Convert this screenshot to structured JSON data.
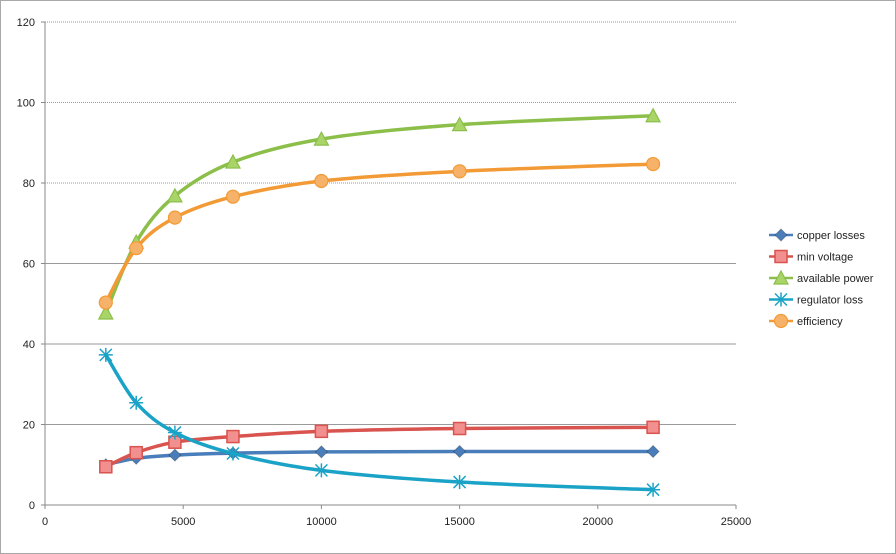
{
  "chart_data": {
    "type": "line",
    "title": "",
    "xlabel": "",
    "ylabel": "",
    "x": [
      2200,
      3300,
      4700,
      6800,
      10000,
      15000,
      22000
    ],
    "xlim": [
      0,
      25000
    ],
    "ylim": [
      0,
      120
    ],
    "x_ticks": [
      0,
      5000,
      10000,
      15000,
      20000,
      25000
    ],
    "y_ticks": [
      0,
      20,
      40,
      60,
      80,
      100,
      120
    ],
    "grid": "horizontal",
    "legend_position": "right",
    "series": [
      {
        "name": "copper losses",
        "color": "#4a7ebb",
        "marker": "diamond",
        "values": [
          10.0,
          11.6,
          12.4,
          12.9,
          13.2,
          13.3,
          13.3
        ]
      },
      {
        "name": "min voltage",
        "color": "#d9534f",
        "marker": "square",
        "values": [
          9.5,
          13.0,
          15.6,
          17.0,
          18.3,
          19.0,
          19.3
        ]
      },
      {
        "name": "available power",
        "color": "#8cbf4a",
        "marker": "triangle",
        "values": [
          47.7,
          65.3,
          76.8,
          85.2,
          90.9,
          94.5,
          96.7
        ]
      },
      {
        "name": "regulator loss",
        "color": "#1aa3c6",
        "marker": "star",
        "values": [
          37.3,
          25.4,
          18.0,
          12.8,
          8.6,
          5.7,
          3.8
        ]
      },
      {
        "name": "efficiency",
        "color": "#f29a35",
        "marker": "circle",
        "values": [
          50.3,
          63.8,
          71.4,
          76.6,
          80.5,
          82.9,
          84.7
        ]
      }
    ]
  }
}
